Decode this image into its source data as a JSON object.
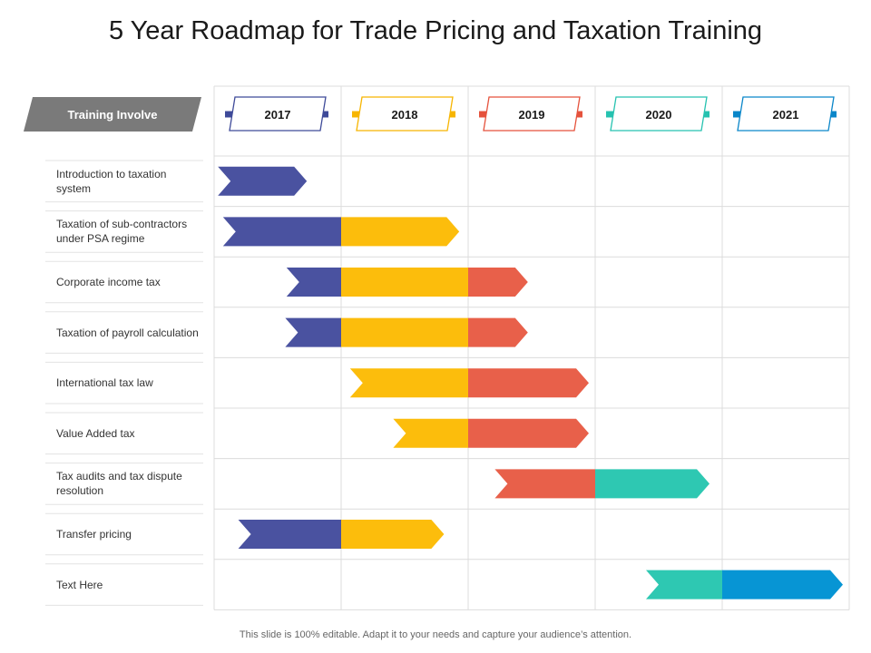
{
  "title": "5 Year Roadmap for Trade Pricing and Taxation Training",
  "footer": "This slide is 100% editable. Adapt it to your needs and capture your audience’s attention.",
  "header_label": "Training Involve",
  "years": [
    {
      "label": "2017",
      "color": "#3e4a99"
    },
    {
      "label": "2018",
      "color": "#f7b500"
    },
    {
      "label": "2019",
      "color": "#e5523c"
    },
    {
      "label": "2020",
      "color": "#26c2b0"
    },
    {
      "label": "2021",
      "color": "#0a86c9"
    }
  ],
  "chart_data": {
    "type": "gantt",
    "title": "5 Year Roadmap for Trade Pricing and Taxation Training",
    "year_range": [
      2017,
      2022
    ],
    "colors": {
      "indigo": "#4a52a0",
      "yellow": "#fcbd0c",
      "red": "#e8604a",
      "teal": "#2ec8b2",
      "blue": "#0795d4"
    },
    "tasks": [
      {
        "name": "Introduction to taxation system",
        "segments": [
          {
            "start": 2017.03,
            "end": 2017.73,
            "color": "indigo"
          }
        ]
      },
      {
        "name": "Taxation of sub-contractors under PSA regime",
        "segments": [
          {
            "start": 2017.07,
            "end": 2018.0,
            "color": "indigo"
          },
          {
            "start": 2018.0,
            "end": 2018.93,
            "color": "yellow"
          }
        ]
      },
      {
        "name": "Corporate income tax",
        "segments": [
          {
            "start": 2017.57,
            "end": 2018.0,
            "color": "indigo"
          },
          {
            "start": 2018.0,
            "end": 2019.0,
            "color": "yellow"
          },
          {
            "start": 2019.0,
            "end": 2019.47,
            "color": "red"
          }
        ]
      },
      {
        "name": "Taxation of payroll calculation",
        "segments": [
          {
            "start": 2017.56,
            "end": 2018.0,
            "color": "indigo"
          },
          {
            "start": 2018.0,
            "end": 2019.0,
            "color": "yellow"
          },
          {
            "start": 2019.0,
            "end": 2019.47,
            "color": "red"
          }
        ]
      },
      {
        "name": "International tax law",
        "segments": [
          {
            "start": 2018.07,
            "end": 2019.0,
            "color": "yellow"
          },
          {
            "start": 2019.0,
            "end": 2019.95,
            "color": "red"
          }
        ]
      },
      {
        "name": "Value Added tax",
        "segments": [
          {
            "start": 2018.41,
            "end": 2019.0,
            "color": "yellow"
          },
          {
            "start": 2019.0,
            "end": 2019.95,
            "color": "red"
          }
        ]
      },
      {
        "name": "Tax audits and tax dispute resolution",
        "segments": [
          {
            "start": 2019.21,
            "end": 2020.0,
            "color": "red"
          },
          {
            "start": 2020.0,
            "end": 2020.9,
            "color": "teal"
          }
        ]
      },
      {
        "name": "Transfer pricing",
        "segments": [
          {
            "start": 2017.19,
            "end": 2018.0,
            "color": "indigo"
          },
          {
            "start": 2018.0,
            "end": 2018.81,
            "color": "yellow"
          }
        ]
      },
      {
        "name": "Text Here",
        "segments": [
          {
            "start": 2020.4,
            "end": 2021.0,
            "color": "teal"
          },
          {
            "start": 2021.0,
            "end": 2021.95,
            "color": "blue"
          }
        ]
      }
    ]
  }
}
